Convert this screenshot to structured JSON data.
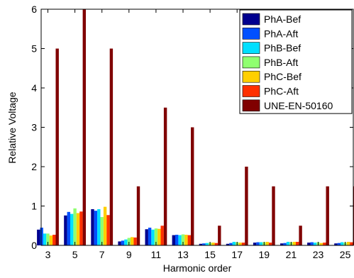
{
  "chart_data": {
    "type": "bar",
    "xlabel": "Harmonic order",
    "ylabel": "Relative Voltage",
    "ylim": [
      0,
      6
    ],
    "yticks": [
      0,
      1,
      2,
      3,
      4,
      5,
      6
    ],
    "grid": false,
    "legend_position": "top-right",
    "categories": [
      "3",
      "5",
      "7",
      "9",
      "11",
      "13",
      "15",
      "17",
      "19",
      "21",
      "23",
      "25"
    ],
    "series": [
      {
        "name": "PhA-Bef",
        "color": "#00008F",
        "values": [
          0.4,
          0.76,
          0.92,
          0.1,
          0.41,
          0.26,
          0.04,
          0.04,
          0.07,
          0.05,
          0.07,
          0.05
        ]
      },
      {
        "name": "PhA-Aft",
        "color": "#0050FF",
        "values": [
          0.45,
          0.85,
          0.88,
          0.12,
          0.45,
          0.27,
          0.05,
          0.06,
          0.08,
          0.06,
          0.08,
          0.06
        ]
      },
      {
        "name": "PhB-Bef",
        "color": "#00DFFF",
        "values": [
          0.3,
          0.8,
          0.92,
          0.15,
          0.4,
          0.26,
          0.06,
          0.09,
          0.08,
          0.09,
          0.07,
          0.08
        ]
      },
      {
        "name": "PhB-Aft",
        "color": "#8FFF70",
        "values": [
          0.3,
          0.94,
          0.72,
          0.19,
          0.43,
          0.28,
          0.07,
          0.08,
          0.08,
          0.08,
          0.08,
          0.07
        ]
      },
      {
        "name": "PhC-Bef",
        "color": "#FFCF00",
        "values": [
          0.25,
          0.82,
          0.98,
          0.21,
          0.42,
          0.27,
          0.07,
          0.07,
          0.09,
          0.09,
          0.06,
          0.09
        ]
      },
      {
        "name": "PhC-Aft",
        "color": "#FF3000",
        "values": [
          0.27,
          0.86,
          0.77,
          0.2,
          0.5,
          0.26,
          0.06,
          0.07,
          0.07,
          0.09,
          0.07,
          0.08
        ]
      },
      {
        "name": "UNE-EN-50160",
        "color": "#800000",
        "values": [
          5,
          6,
          5,
          1.5,
          3.5,
          3,
          0.5,
          2,
          1.5,
          0.5,
          1.5,
          1.5
        ]
      }
    ]
  }
}
